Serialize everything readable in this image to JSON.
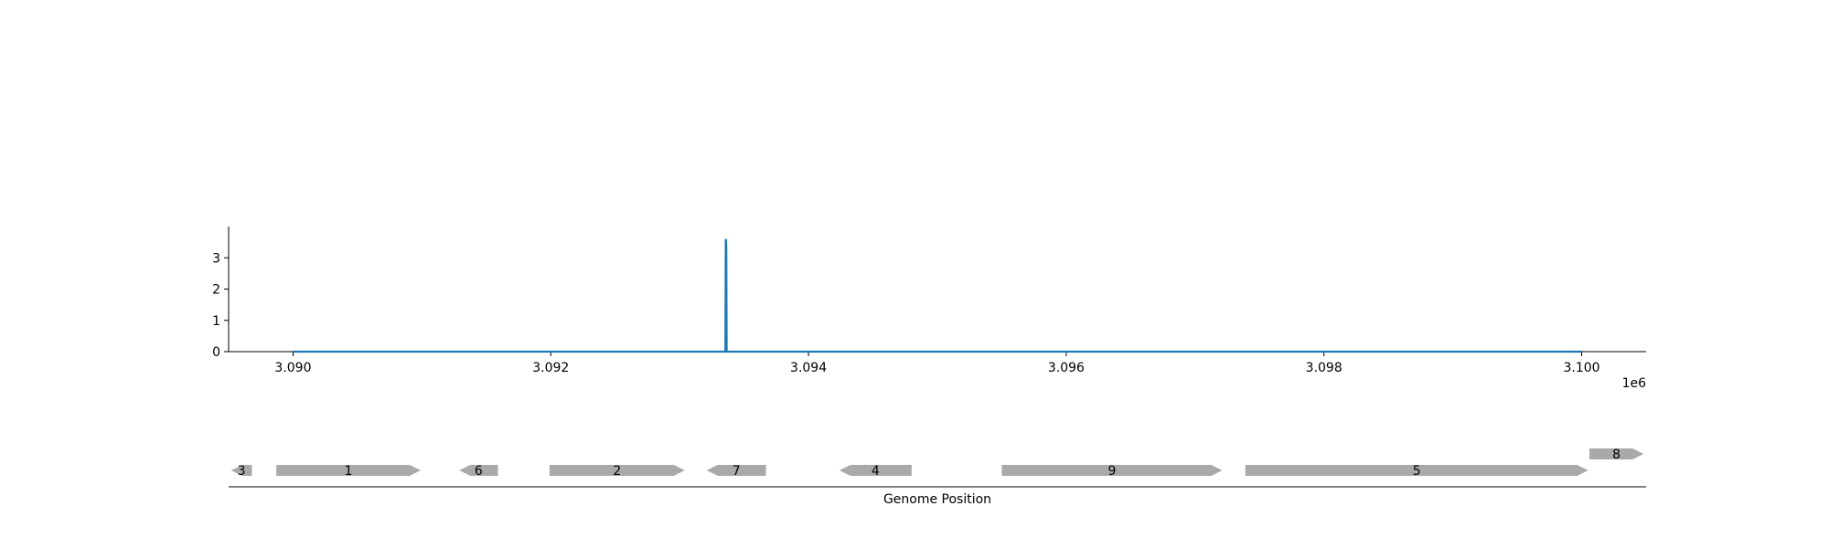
{
  "chart_data": [
    {
      "type": "line",
      "title": "",
      "xlabel": "",
      "ylabel": "",
      "x_offset_label": "1e6",
      "xlim": [
        3089500,
        3100500
      ],
      "ylim": [
        0,
        4
      ],
      "x_ticks": [
        3090000,
        3092000,
        3094000,
        3096000,
        3098000,
        3100000
      ],
      "x_tick_labels": [
        "3.090",
        "3.092",
        "3.094",
        "3.096",
        "3.098",
        "3.100"
      ],
      "y_ticks": [
        0,
        1,
        2,
        3
      ],
      "y_tick_labels": [
        "0",
        "1",
        "2",
        "3"
      ],
      "grid": false,
      "line_color": "#1f77b4",
      "series": [
        {
          "x": [
            3090000,
            3093355,
            3093358,
            3093360,
            3093362,
            3093365,
            3100000
          ],
          "y": [
            0,
            0,
            3.6,
            3.55,
            3.3,
            0,
            0
          ]
        }
      ]
    },
    {
      "type": "gene-track",
      "xlabel": "Genome Position",
      "xlim": [
        3089500,
        3100500
      ],
      "gene_color": "#a9a9a9",
      "genes": [
        {
          "label": "3",
          "start": 3089520,
          "end": 3089680,
          "strand": "-",
          "row": 0
        },
        {
          "label": "1",
          "start": 3089870,
          "end": 3090990,
          "strand": "+",
          "row": 0
        },
        {
          "label": "6",
          "start": 3091290,
          "end": 3091590,
          "strand": "-",
          "row": 0
        },
        {
          "label": "2",
          "start": 3091990,
          "end": 3093040,
          "strand": "+",
          "row": 0
        },
        {
          "label": "7",
          "start": 3093210,
          "end": 3093670,
          "strand": "-",
          "row": 0
        },
        {
          "label": "4",
          "start": 3094240,
          "end": 3094800,
          "strand": "-",
          "row": 0
        },
        {
          "label": "9",
          "start": 3095500,
          "end": 3097210,
          "strand": "+",
          "row": 0
        },
        {
          "label": "5",
          "start": 3097390,
          "end": 3100050,
          "strand": "+",
          "row": 0
        },
        {
          "label": "8",
          "start": 3100060,
          "end": 3100480,
          "strand": "+",
          "row": 1
        }
      ]
    }
  ]
}
